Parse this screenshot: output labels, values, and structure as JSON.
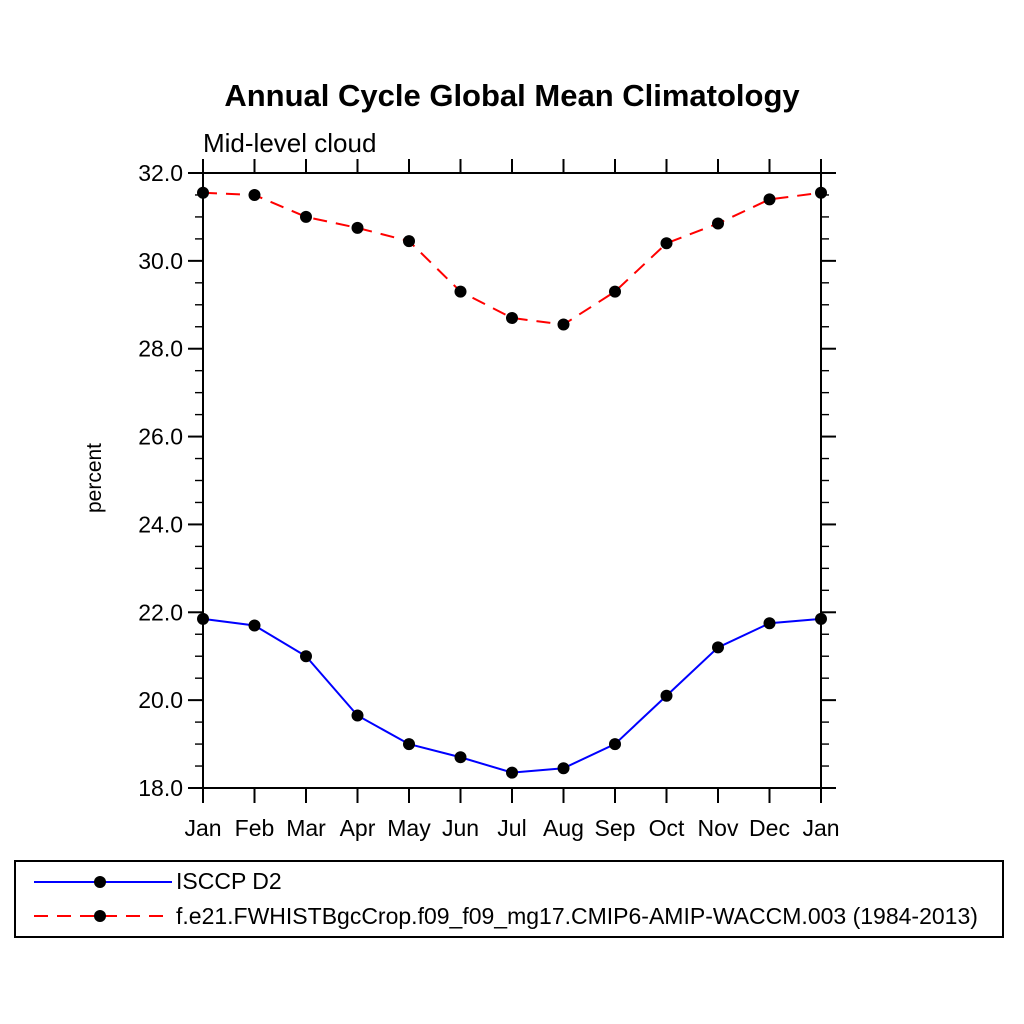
{
  "chart_data": {
    "type": "line",
    "title": "Annual Cycle Global Mean Climatology",
    "subtitle": "Mid-level cloud",
    "ylabel": "percent",
    "x_tick_labels": [
      "Jan",
      "Feb",
      "Mar",
      "Apr",
      "May",
      "Jun",
      "Jul",
      "Aug",
      "Sep",
      "Oct",
      "Nov",
      "Dec",
      "Jan"
    ],
    "ylim": [
      18.0,
      32.0
    ],
    "y_major_step": 2.0,
    "y_minor_step": 0.5,
    "y_tick_decimals": 1,
    "grid": false,
    "legend_position": "bottom",
    "axis_color": "#000000",
    "marker_color": "#000000",
    "series": [
      {
        "name": "ISCCP D2",
        "color": "#0000ff",
        "line_style": "solid",
        "values": [
          21.85,
          21.7,
          21.0,
          19.65,
          19.0,
          18.7,
          18.35,
          18.45,
          19.0,
          20.1,
          21.2,
          21.75,
          21.85
        ]
      },
      {
        "name": "f.e21.FWHISTBgcCrop.f09_f09_mg17.CMIP6-AMIP-WACCM.003 (1984-2013)",
        "color": "#ff0000",
        "line_style": "dashed",
        "values": [
          31.55,
          31.5,
          31.0,
          30.75,
          30.45,
          29.3,
          28.7,
          28.55,
          29.3,
          30.4,
          30.85,
          31.4,
          31.55
        ]
      }
    ]
  }
}
